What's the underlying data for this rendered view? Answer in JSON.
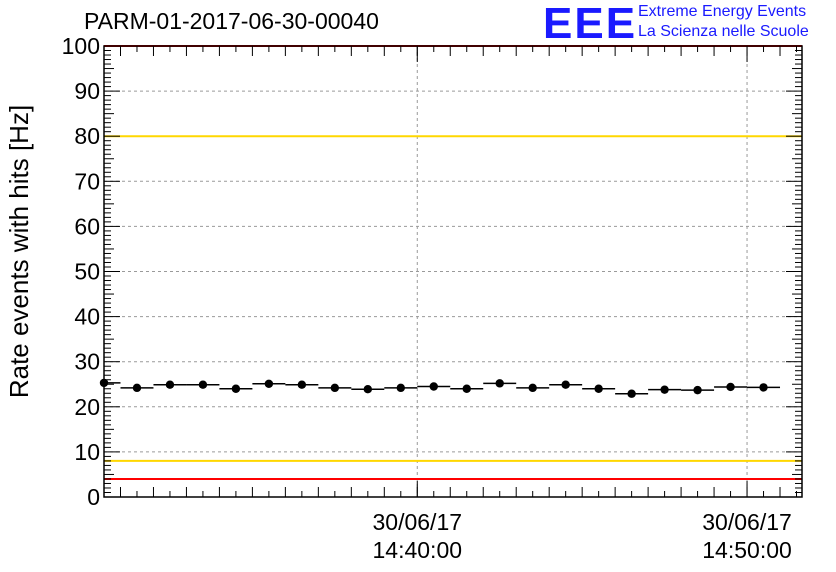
{
  "title": "PARM-01-2017-06-30-00040",
  "logo": {
    "mark": "EEE",
    "line1": "Extreme Energy Events",
    "line2": "La Scienza nelle Scuole",
    "color": "#1a1aff"
  },
  "chart_data": {
    "type": "scatter",
    "ylabel": "Rate events with hits [Hz]",
    "xlabel": "",
    "ylim": [
      0,
      100
    ],
    "yticks": [
      "0",
      "10",
      "20",
      "30",
      "40",
      "50",
      "60",
      "70",
      "80",
      "90",
      "100"
    ],
    "x_time_range": [
      "30/06/17 14:30:30",
      "30/06/17 14:51:40"
    ],
    "xticks": [
      {
        "time": "30/06/17 14:40:00",
        "date": "30/06/17",
        "clock": "14:40:00"
      },
      {
        "time": "30/06/17 14:50:00",
        "date": "30/06/17",
        "clock": "14:50:00"
      }
    ],
    "grid": true,
    "reference_lines": [
      {
        "y": 100,
        "color": "#ff0000"
      },
      {
        "y": 80,
        "color": "#ffd700"
      },
      {
        "y": 8,
        "color": "#ffd700"
      },
      {
        "y": 4,
        "color": "#ff0000"
      }
    ],
    "series": [
      {
        "marker_color": "#000000",
        "points": [
          {
            "x": "30/06/17 14:30:30",
            "y": 25.3
          },
          {
            "x": "30/06/17 14:31:30",
            "y": 24.2
          },
          {
            "x": "30/06/17 14:32:30",
            "y": 24.9
          },
          {
            "x": "30/06/17 14:33:30",
            "y": 24.9
          },
          {
            "x": "30/06/17 14:34:30",
            "y": 24.0
          },
          {
            "x": "30/06/17 14:35:30",
            "y": 25.1
          },
          {
            "x": "30/06/17 14:36:30",
            "y": 24.9
          },
          {
            "x": "30/06/17 14:37:30",
            "y": 24.2
          },
          {
            "x": "30/06/17 14:38:30",
            "y": 23.9
          },
          {
            "x": "30/06/17 14:39:30",
            "y": 24.2
          },
          {
            "x": "30/06/17 14:40:30",
            "y": 24.5
          },
          {
            "x": "30/06/17 14:41:30",
            "y": 24.0
          },
          {
            "x": "30/06/17 14:42:30",
            "y": 25.2
          },
          {
            "x": "30/06/17 14:43:30",
            "y": 24.2
          },
          {
            "x": "30/06/17 14:44:30",
            "y": 24.9
          },
          {
            "x": "30/06/17 14:45:30",
            "y": 24.0
          },
          {
            "x": "30/06/17 14:46:30",
            "y": 22.9
          },
          {
            "x": "30/06/17 14:47:30",
            "y": 23.8
          },
          {
            "x": "30/06/17 14:48:30",
            "y": 23.7
          },
          {
            "x": "30/06/17 14:49:30",
            "y": 24.4
          },
          {
            "x": "30/06/17 14:50:30",
            "y": 24.3
          }
        ]
      }
    ]
  }
}
